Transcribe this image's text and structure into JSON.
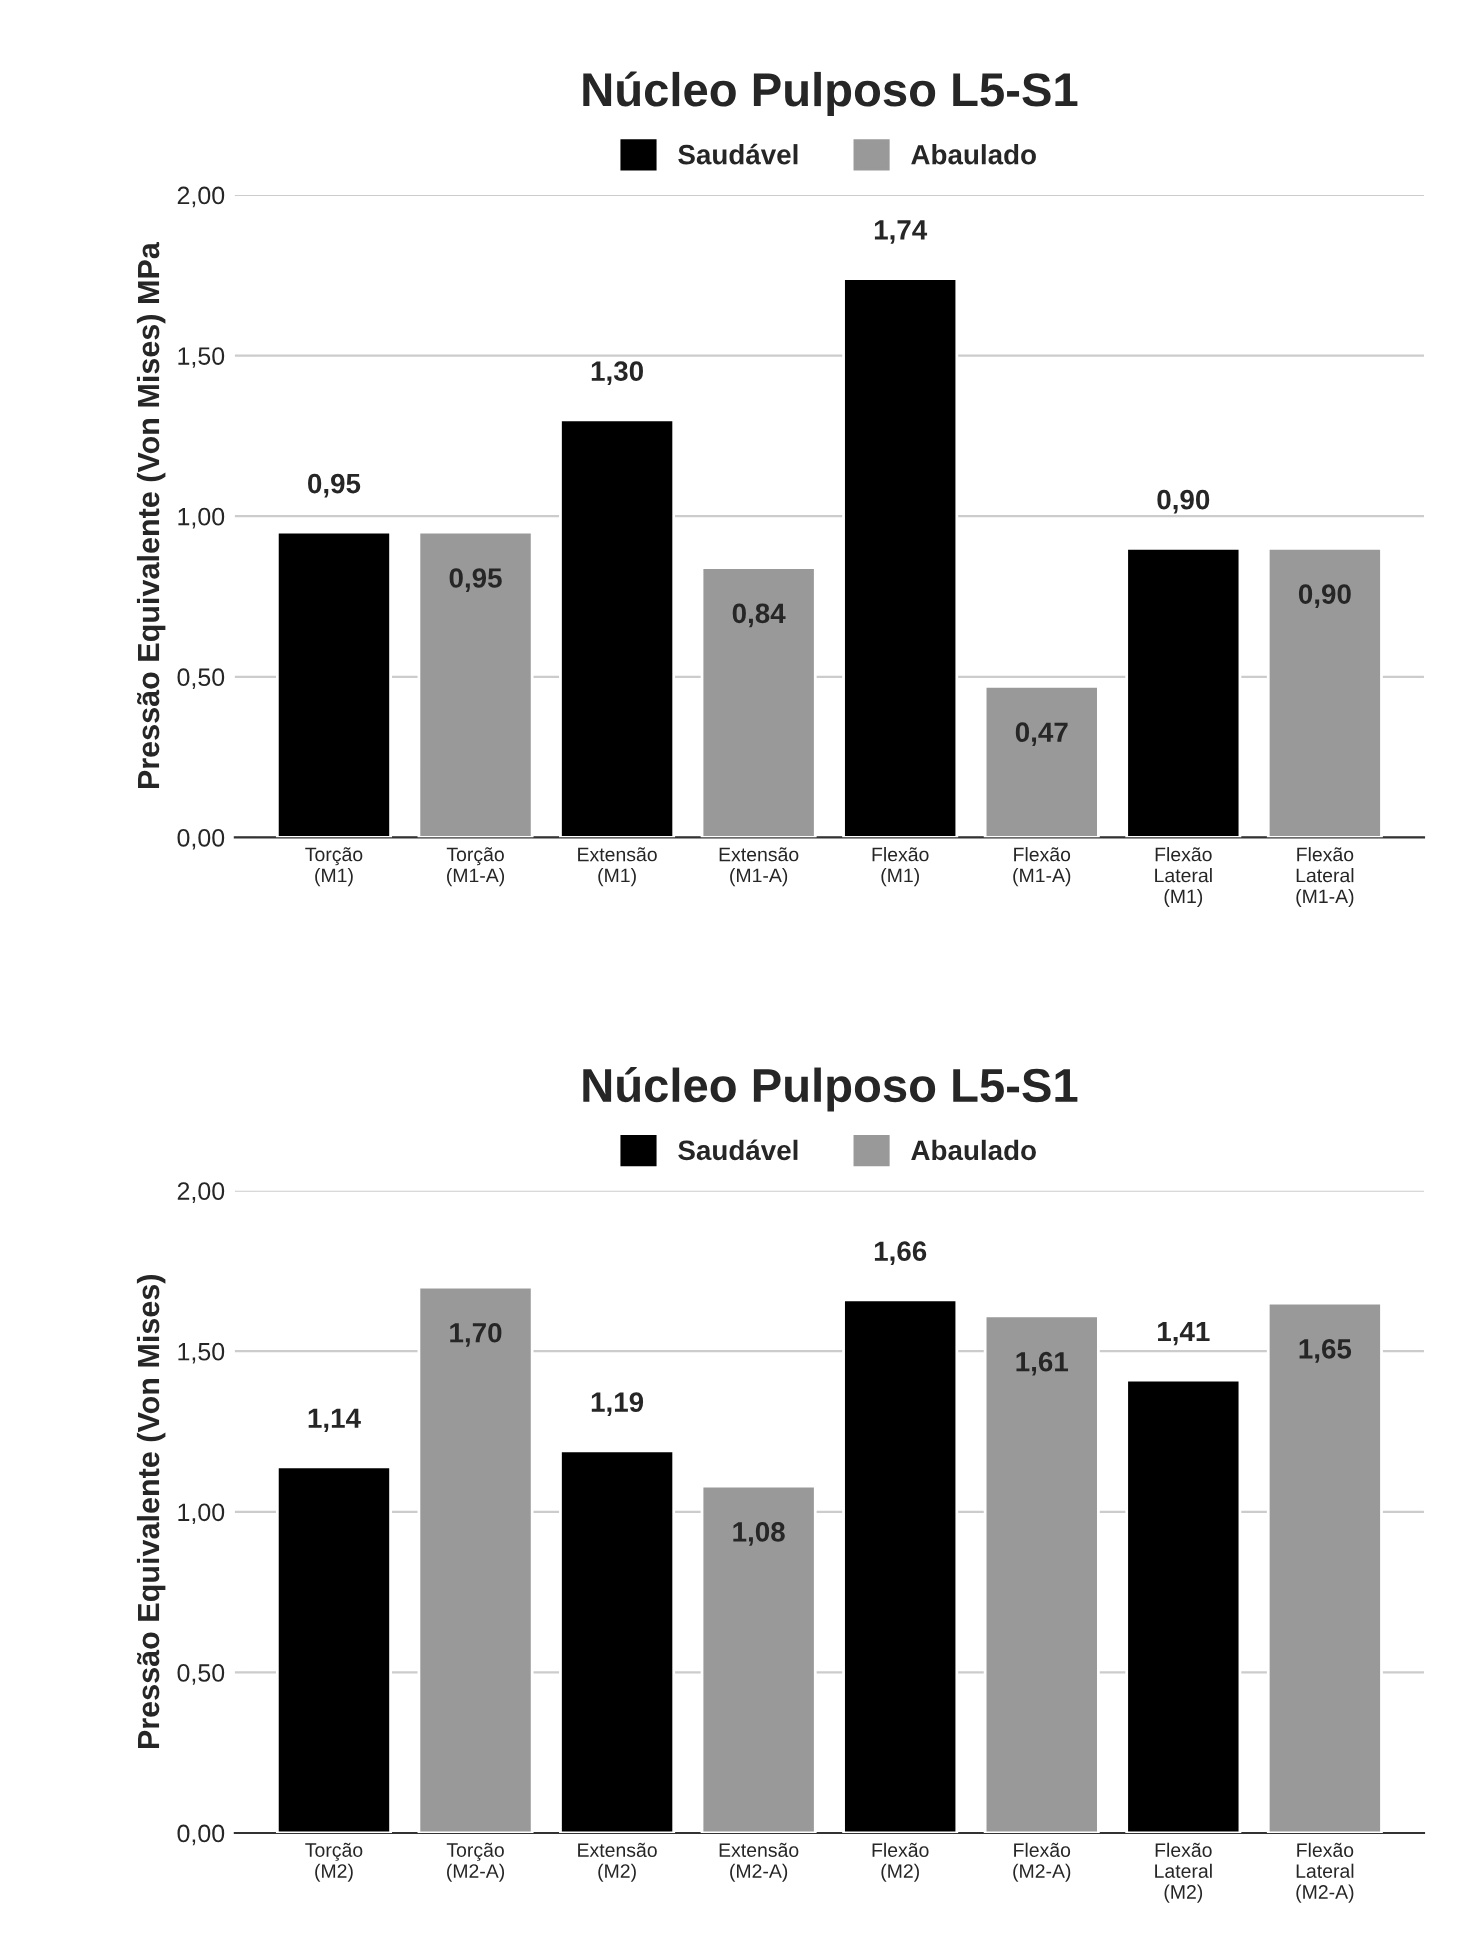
{
  "chart_data": [
    {
      "type": "bar",
      "title": "Núcleo Pulposo L5-S1",
      "ylabel": "Pressão Equivalente (Von Mises) MPa",
      "categories": [
        "Torção\n(M1)",
        "Torção\n(M1-A)",
        "Extensão\n(M1)",
        "Extensão\n(M1-A)",
        "Flexão\n(M1)",
        "Flexão\n(M1-A)",
        "Flexão\nLateral\n(M1)",
        "Flexão\nLateral\n(M1-A)"
      ],
      "series": [
        {
          "name": "Saudável",
          "color": "#000000",
          "values": [
            0.95,
            null,
            1.3,
            null,
            1.74,
            null,
            0.9,
            null
          ],
          "value_labels": [
            "0,95",
            null,
            "1,30",
            null,
            "1,74",
            null,
            "0,90",
            null
          ]
        },
        {
          "name": "Abaulado",
          "color": "#999999",
          "values": [
            null,
            0.95,
            null,
            0.84,
            null,
            0.47,
            null,
            0.9
          ],
          "value_labels": [
            null,
            "0,95",
            null,
            "0,84",
            null,
            "0,47",
            null,
            "0,90"
          ]
        }
      ],
      "ylim": [
        0,
        2
      ],
      "yticks": [
        {
          "value": 0,
          "label": "0,00"
        },
        {
          "value": 0.5,
          "label": "0,50"
        },
        {
          "value": 1,
          "label": "1,00"
        },
        {
          "value": 1.5,
          "label": "1,50"
        },
        {
          "value": 2,
          "label": "2,00"
        }
      ],
      "grid": "y",
      "legend": "top"
    },
    {
      "type": "bar",
      "title": "Núcleo Pulposo L5-S1",
      "ylabel": "Pressão Equivalente (Von Mises)",
      "categories": [
        "Torção\n(M2)",
        "Torção\n(M2-A)",
        "Extensão\n(M2)",
        "Extensão\n(M2-A)",
        "Flexão\n(M2)",
        "Flexão\n(M2-A)",
        "Flexão\nLateral\n(M2)",
        "Flexão\nLateral\n(M2-A)"
      ],
      "series": [
        {
          "name": "Saudável",
          "color": "#000000",
          "values": [
            1.14,
            null,
            1.19,
            null,
            1.66,
            null,
            1.41,
            null
          ],
          "value_labels": [
            "1,14",
            null,
            "1,19",
            null,
            "1,66",
            null,
            "1,41",
            null
          ]
        },
        {
          "name": "Abaulado",
          "color": "#999999",
          "values": [
            null,
            1.7,
            null,
            1.08,
            null,
            1.61,
            null,
            1.65
          ],
          "value_labels": [
            null,
            "1,70",
            null,
            "1,08",
            null,
            "1,61",
            null,
            "1,65"
          ]
        }
      ],
      "ylim": [
        0,
        2
      ],
      "yticks": [
        {
          "value": 0,
          "label": "0,00"
        },
        {
          "value": 0.5,
          "label": "0,50"
        },
        {
          "value": 1,
          "label": "1,00"
        },
        {
          "value": 1.5,
          "label": "1,50"
        },
        {
          "value": 2,
          "label": "2,00"
        }
      ],
      "grid": "y",
      "legend": "top"
    }
  ]
}
